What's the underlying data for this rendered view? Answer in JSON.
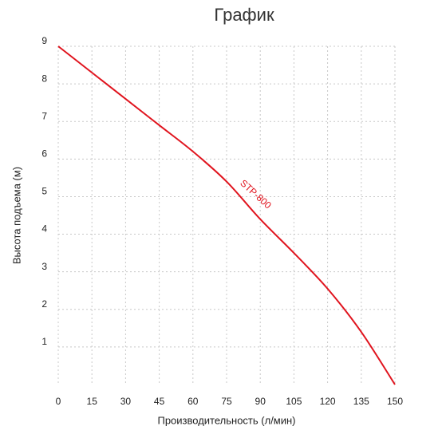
{
  "chart_data": {
    "type": "line",
    "title": "График",
    "x_label": "Производительность (л/мин)",
    "y_label": "Высота подъема (м)",
    "x": [
      0,
      15,
      30,
      45,
      60,
      75,
      90,
      105,
      120,
      135,
      150
    ],
    "series": [
      {
        "name": "STP-800",
        "color": "#e0141e",
        "values": [
          9,
          8.3,
          7.6,
          6.9,
          6.2,
          5.4,
          4.4,
          3.5,
          2.55,
          1.4,
          0
        ]
      }
    ],
    "xlim": [
      0,
      150
    ],
    "ylim": [
      0,
      9
    ],
    "xticks": [
      0,
      15,
      30,
      45,
      60,
      75,
      90,
      105,
      120,
      135,
      150
    ],
    "yticks": [
      1,
      2,
      3,
      4,
      5,
      6,
      7,
      8,
      9
    ],
    "grid": true
  }
}
